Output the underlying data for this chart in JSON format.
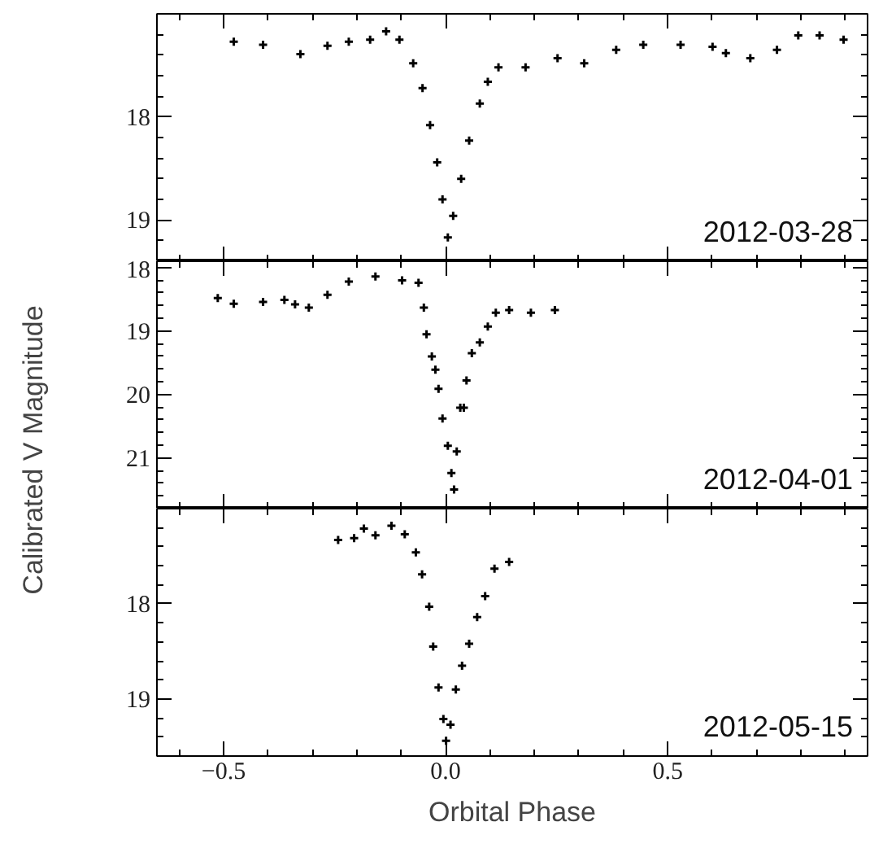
{
  "chart_data": [
    {
      "type": "scatter",
      "marker": "cross",
      "tick_labels": "y",
      "annotations": [
        "2012-03-28"
      ],
      "xlim": [
        -0.65,
        0.95
      ],
      "ylim": [
        19.4,
        17.0
      ],
      "xticks": [
        -0.5,
        0.0,
        0.5,
        {
          "value": -0.6,
          "label": null
        },
        {
          "value": -0.4,
          "label": null
        },
        {
          "value": -0.3,
          "label": null
        },
        {
          "value": -0.2,
          "label": null
        },
        {
          "value": -0.1,
          "label": null
        },
        {
          "value": 0.1,
          "label": null
        },
        {
          "value": 0.2,
          "label": null
        },
        {
          "value": 0.3,
          "label": null
        },
        {
          "value": 0.4,
          "label": null
        },
        {
          "value": 0.6,
          "label": null
        },
        {
          "value": 0.7,
          "label": null
        },
        {
          "value": 0.8,
          "label": null
        },
        {
          "value": 0.9,
          "label": null
        }
      ],
      "yticks": [
        18,
        19,
        {
          "value": 17.2,
          "label": null
        },
        {
          "value": 17.4,
          "label": null
        },
        {
          "value": 17.6,
          "label": null
        },
        {
          "value": 17.8,
          "label": null
        },
        {
          "value": 18.2,
          "label": null
        },
        {
          "value": 18.4,
          "label": null
        },
        {
          "value": 18.6,
          "label": null
        },
        {
          "value": 18.8,
          "label": null
        },
        {
          "value": 19.2,
          "label": null
        }
      ],
      "series": [
        {
          "color": "#000000",
          "x": [
            -0.477,
            -0.411,
            -0.327,
            -0.266,
            -0.218,
            -0.17,
            -0.134,
            -0.104,
            -0.073,
            -0.052,
            -0.035,
            -0.019,
            -0.007,
            0.005,
            0.017,
            0.035,
            0.053,
            0.077,
            0.095,
            0.119,
            0.18,
            0.252,
            0.312,
            0.384,
            0.445,
            0.529,
            0.601,
            0.631,
            0.686,
            0.746,
            0.794,
            0.842,
            0.896
          ],
          "values": [
            17.27,
            17.3,
            17.39,
            17.31,
            17.27,
            17.25,
            17.17,
            17.25,
            17.48,
            17.72,
            18.08,
            18.44,
            18.8,
            19.17,
            18.96,
            18.6,
            18.23,
            17.87,
            17.66,
            17.52,
            17.52,
            17.43,
            17.48,
            17.35,
            17.3,
            17.3,
            17.32,
            17.38,
            17.43,
            17.35,
            17.21,
            17.21,
            17.25
          ]
        }
      ]
    },
    {
      "type": "scatter",
      "marker": "cross",
      "tick_labels": "y",
      "ylabel": "Calibrated V Magnitude",
      "annotations": [
        "2012-04-01"
      ],
      "xlim": [
        -0.65,
        0.95
      ],
      "ylim": [
        21.8,
        17.9
      ],
      "xticks": [
        -0.5,
        0.0,
        0.5,
        {
          "value": -0.6,
          "label": null
        },
        {
          "value": -0.4,
          "label": null
        },
        {
          "value": -0.3,
          "label": null
        },
        {
          "value": -0.2,
          "label": null
        },
        {
          "value": -0.1,
          "label": null
        },
        {
          "value": 0.1,
          "label": null
        },
        {
          "value": 0.2,
          "label": null
        },
        {
          "value": 0.3,
          "label": null
        },
        {
          "value": 0.4,
          "label": null
        },
        {
          "value": 0.6,
          "label": null
        },
        {
          "value": 0.7,
          "label": null
        },
        {
          "value": 0.8,
          "label": null
        },
        {
          "value": 0.9,
          "label": null
        }
      ],
      "yticks": [
        18,
        19,
        20,
        21,
        {
          "value": 18.2,
          "label": null
        },
        {
          "value": 18.4,
          "label": null
        },
        {
          "value": 18.6,
          "label": null
        },
        {
          "value": 18.8,
          "label": null
        },
        {
          "value": 19.2,
          "label": null
        },
        {
          "value": 19.4,
          "label": null
        },
        {
          "value": 19.6,
          "label": null
        },
        {
          "value": 19.8,
          "label": null
        },
        {
          "value": 20.2,
          "label": null
        },
        {
          "value": 20.4,
          "label": null
        },
        {
          "value": 20.6,
          "label": null
        },
        {
          "value": 20.8,
          "label": null
        },
        {
          "value": 21.2,
          "label": null
        },
        {
          "value": 21.4,
          "label": null
        },
        {
          "value": 21.6,
          "label": null
        }
      ],
      "series": [
        {
          "color": "#000000",
          "x": [
            -0.513,
            -0.477,
            -0.411,
            -0.363,
            -0.339,
            -0.308,
            -0.266,
            -0.218,
            -0.158,
            -0.098,
            -0.061,
            -0.049,
            -0.043,
            -0.031,
            -0.023,
            -0.016,
            -0.007,
            0.005,
            0.013,
            0.019,
            0.025,
            0.033,
            0.041,
            0.047,
            0.059,
            0.077,
            0.095,
            0.113,
            0.143,
            0.192,
            0.246
          ],
          "values": [
            18.48,
            18.57,
            18.54,
            18.51,
            18.58,
            18.63,
            18.43,
            18.22,
            18.14,
            18.2,
            18.24,
            18.63,
            19.05,
            19.4,
            19.61,
            19.91,
            20.38,
            20.81,
            21.24,
            21.5,
            20.9,
            20.21,
            20.21,
            19.78,
            19.35,
            19.18,
            18.93,
            18.71,
            18.67,
            18.71,
            18.67
          ]
        }
      ]
    },
    {
      "type": "scatter",
      "marker": "cross",
      "xlabel": "Orbital Phase",
      "annotations": [
        "2012-05-15"
      ],
      "xlim": [
        -0.65,
        0.95
      ],
      "ylim": [
        19.6,
        17.0
      ],
      "xticks": [
        {
          "value": -0.5,
          "label": "−0.5"
        },
        {
          "value": 0.0,
          "label": "0.0"
        },
        0.5,
        {
          "value": -0.6,
          "label": null
        },
        {
          "value": -0.4,
          "label": null
        },
        {
          "value": -0.3,
          "label": null
        },
        {
          "value": -0.2,
          "label": null
        },
        {
          "value": -0.1,
          "label": null
        },
        {
          "value": 0.1,
          "label": null
        },
        {
          "value": 0.2,
          "label": null
        },
        {
          "value": 0.3,
          "label": null
        },
        {
          "value": 0.4,
          "label": null
        },
        {
          "value": 0.6,
          "label": null
        },
        {
          "value": 0.7,
          "label": null
        },
        {
          "value": 0.8,
          "label": null
        },
        {
          "value": 0.9,
          "label": null
        }
      ],
      "yticks": [
        18,
        19,
        {
          "value": 17.2,
          "label": null
        },
        {
          "value": 17.4,
          "label": null
        },
        {
          "value": 17.6,
          "label": null
        },
        {
          "value": 17.8,
          "label": null
        },
        {
          "value": 18.2,
          "label": null
        },
        {
          "value": 18.4,
          "label": null
        },
        {
          "value": 18.6,
          "label": null
        },
        {
          "value": 18.8,
          "label": null
        },
        {
          "value": 19.2,
          "label": null
        },
        {
          "value": 19.4,
          "label": null
        }
      ],
      "series": [
        {
          "color": "#000000",
          "x": [
            -0.242,
            -0.206,
            -0.184,
            -0.158,
            -0.122,
            -0.092,
            -0.067,
            -0.053,
            -0.037,
            -0.028,
            -0.016,
            -0.005,
            0.001,
            0.011,
            0.023,
            0.037,
            0.053,
            0.071,
            0.089,
            0.11,
            0.143
          ],
          "values": [
            17.33,
            17.31,
            17.21,
            17.28,
            17.18,
            17.27,
            17.46,
            17.69,
            18.03,
            18.45,
            18.88,
            19.21,
            19.44,
            19.27,
            18.9,
            18.65,
            18.42,
            18.14,
            17.92,
            17.63,
            17.56
          ]
        }
      ]
    }
  ]
}
